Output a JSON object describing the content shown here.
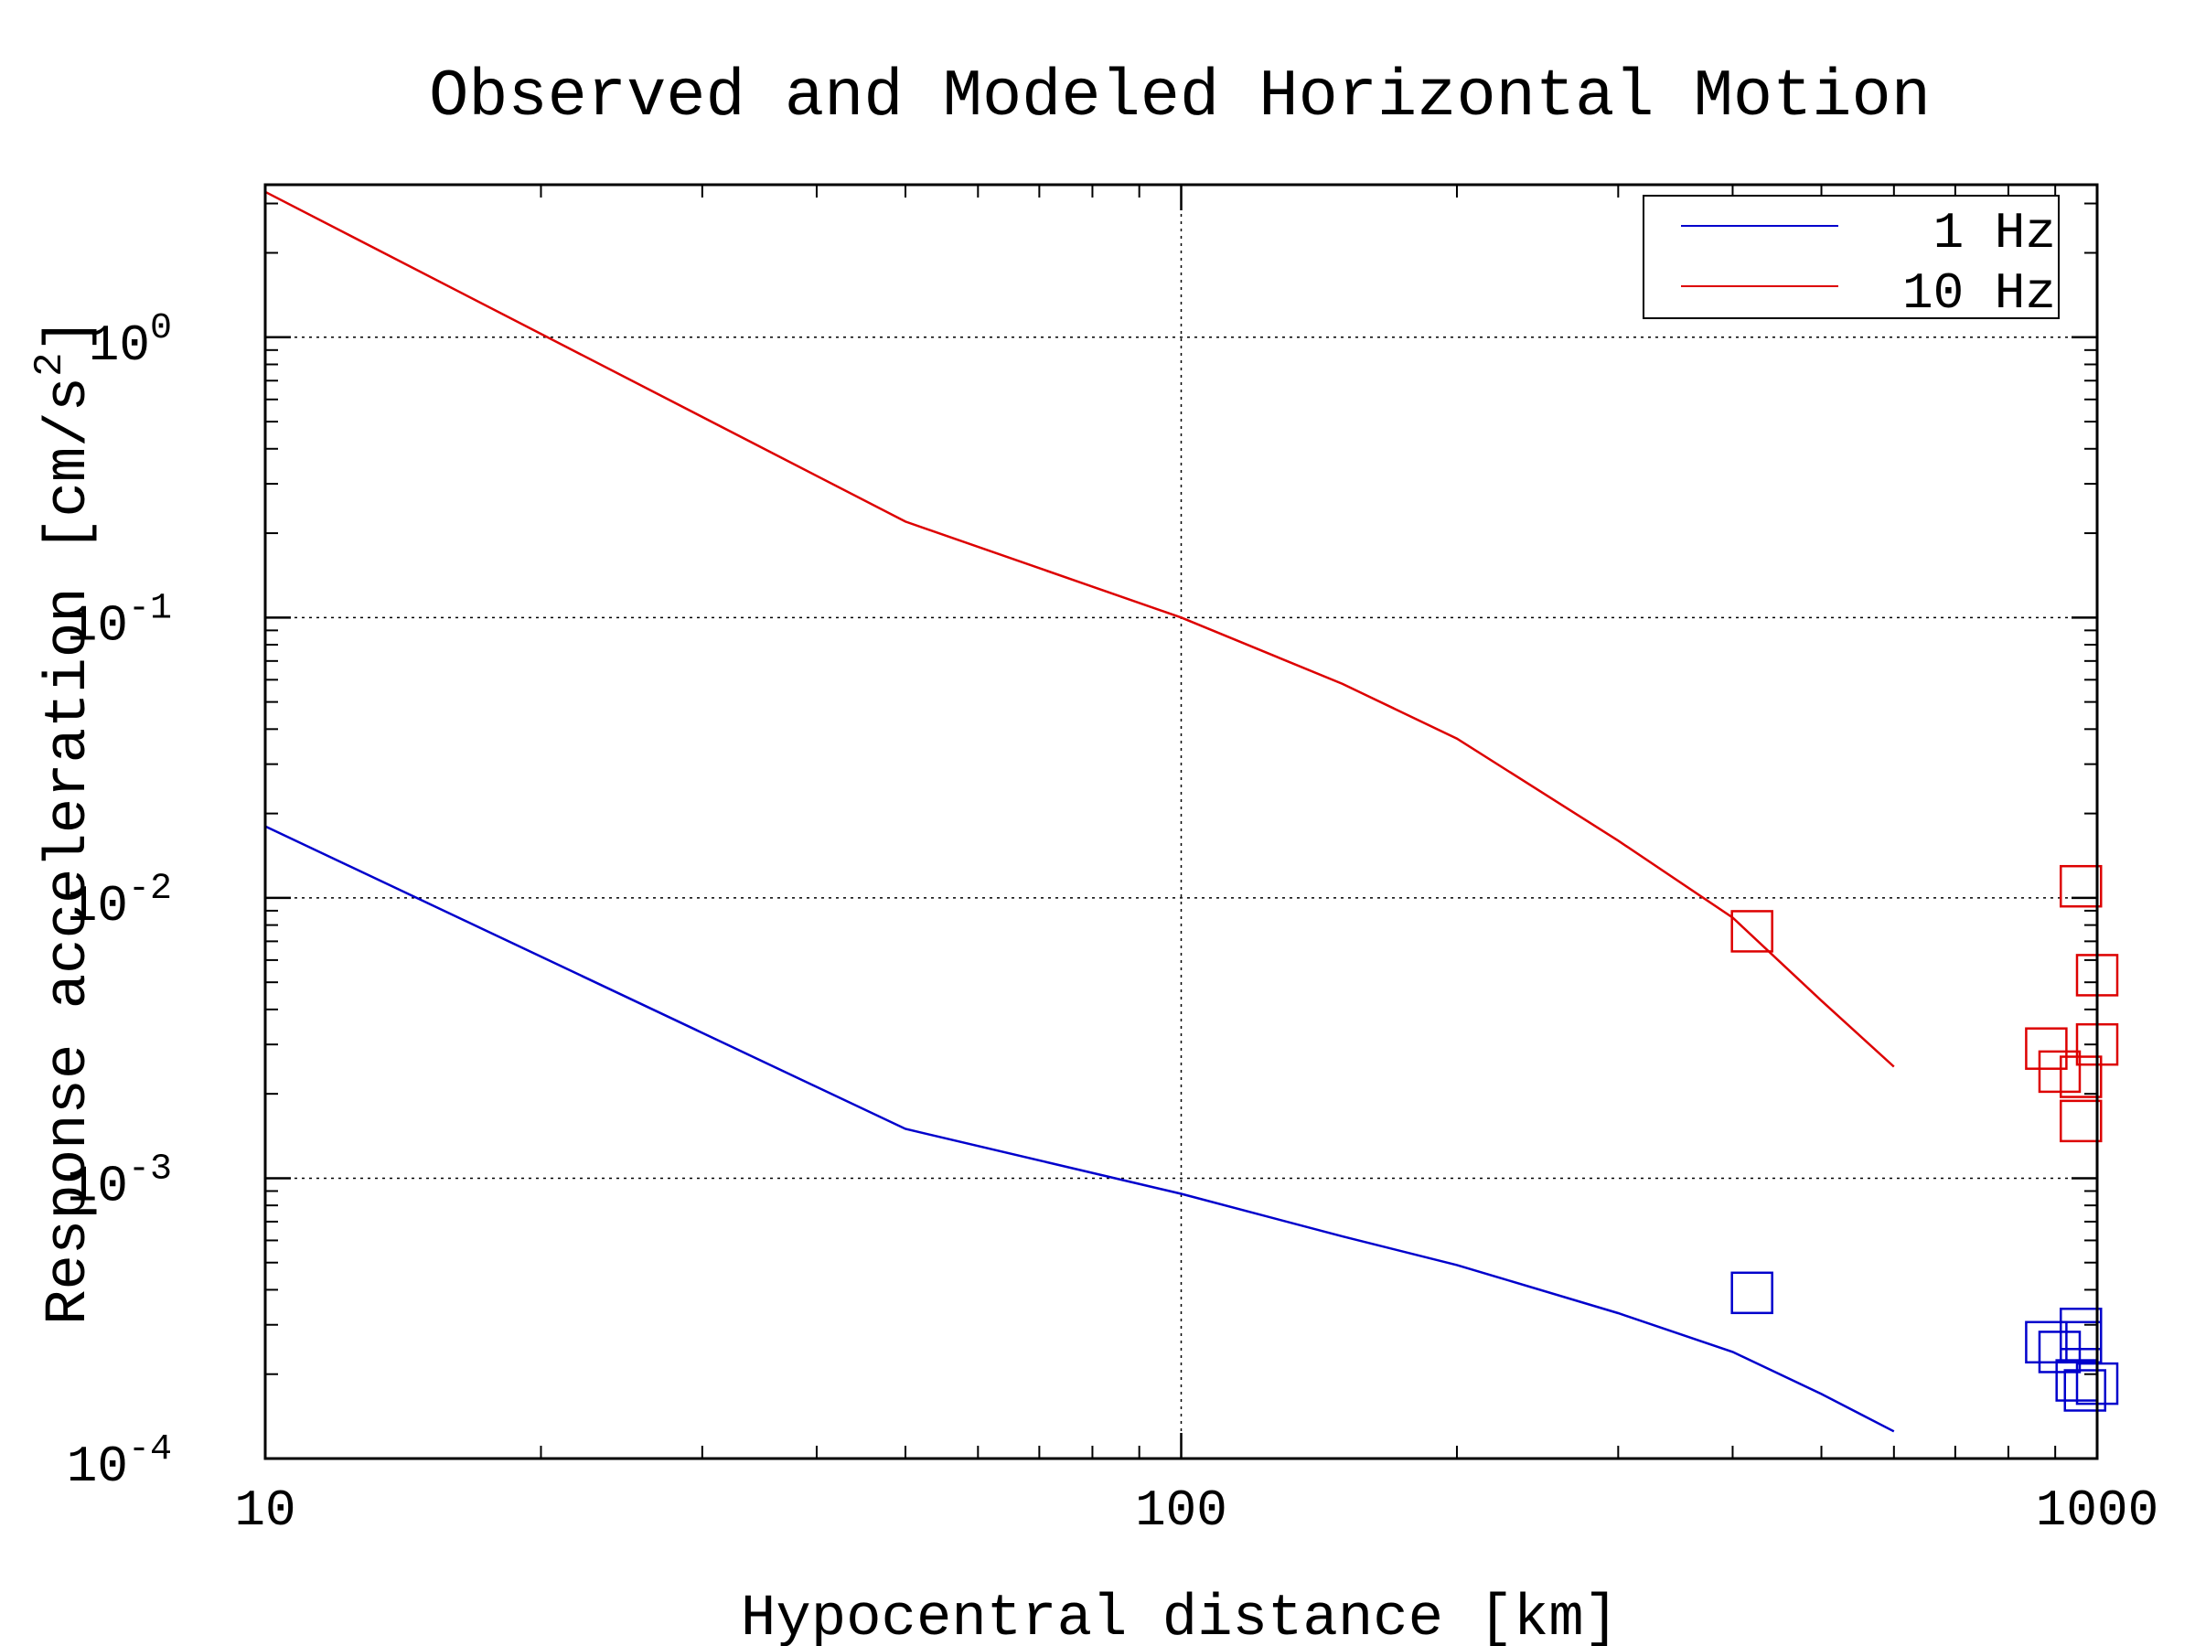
{
  "chart_data": {
    "type": "line",
    "title": "Observed and Modeled Horizontal Motion",
    "xlabel": "Hypocentral distance [km]",
    "ylabel_main": "Response acceleration [cm/s",
    "ylabel_sup": "2",
    "ylabel_tail": "]",
    "xscale": "log",
    "yscale": "log",
    "xlim": [
      10,
      1000
    ],
    "ylim": [
      0.0001,
      3.5
    ],
    "grid": true,
    "legend_position": "top-right",
    "x_ticks": [
      {
        "value": 10,
        "label": "10"
      },
      {
        "value": 100,
        "label": "100"
      },
      {
        "value": 1000,
        "label": "1000"
      }
    ],
    "y_ticks": [
      {
        "value": 1,
        "base": "10",
        "exp": "0"
      },
      {
        "value": 0.1,
        "base": "10",
        "exp": "-1"
      },
      {
        "value": 0.01,
        "base": "10",
        "exp": "-2"
      },
      {
        "value": 0.001,
        "base": "10",
        "exp": "-3"
      },
      {
        "value": 0.0001,
        "base": "10",
        "exp": "-4"
      }
    ],
    "series": [
      {
        "name": "1 Hz",
        "color": "#0000cc",
        "line": {
          "x": [
            10,
            50,
            100,
            150,
            200,
            300,
            400,
            500,
            600
          ],
          "y": [
            0.018,
            0.0015,
            0.00088,
            0.00062,
            0.00049,
            0.00033,
            0.00024,
            0.00017,
            0.000125
          ]
        },
        "observed": {
          "x": [
            420,
            910,
            880,
            960,
            960,
            950,
            970,
            1000
          ],
          "y": [
            0.00039,
            0.00024,
            0.00026,
            0.00029,
            0.00026,
            0.00019,
            0.000175,
            0.000185
          ]
        }
      },
      {
        "name": "10 Hz",
        "color": "#dd0000",
        "line": {
          "x": [
            10,
            50,
            100,
            150,
            200,
            300,
            400,
            500,
            600
          ],
          "y": [
            3.3,
            0.22,
            0.1,
            0.058,
            0.037,
            0.016,
            0.0085,
            0.0043,
            0.0025
          ]
        },
        "observed": {
          "x": [
            420,
            960,
            1000,
            910,
            880,
            960,
            960,
            1000
          ],
          "y": [
            0.0076,
            0.011,
            0.0053,
            0.0024,
            0.0029,
            0.0023,
            0.0016,
            0.003
          ]
        }
      }
    ]
  }
}
